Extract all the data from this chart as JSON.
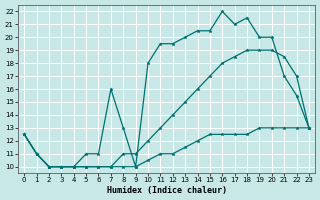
{
  "xlabel": "Humidex (Indice chaleur)",
  "bg_color": "#c8e8e8",
  "grid_color": "#c0c0c0",
  "line_color": "#007070",
  "xlim": [
    -0.5,
    23.5
  ],
  "ylim": [
    9.5,
    22.5
  ],
  "xticks": [
    0,
    1,
    2,
    3,
    4,
    5,
    6,
    7,
    8,
    9,
    10,
    11,
    12,
    13,
    14,
    15,
    16,
    17,
    18,
    19,
    20,
    21,
    22,
    23
  ],
  "yticks": [
    10,
    11,
    12,
    13,
    14,
    15,
    16,
    17,
    18,
    19,
    20,
    21,
    22
  ],
  "line1_x": [
    0,
    1,
    2,
    3,
    4,
    5,
    6,
    7,
    8,
    9,
    10,
    11,
    12,
    13,
    14,
    15,
    16,
    17,
    18,
    19,
    20,
    21,
    22,
    23
  ],
  "line1_y": [
    12.5,
    11,
    10,
    10,
    10,
    10,
    10,
    10,
    10,
    10,
    10.5,
    11,
    11,
    11.5,
    12,
    12.5,
    12.5,
    12.5,
    12.5,
    13,
    13,
    13,
    13,
    13
  ],
  "line2_x": [
    0,
    1,
    2,
    3,
    4,
    5,
    6,
    7,
    8,
    9,
    10,
    11,
    12,
    13,
    14,
    15,
    16,
    17,
    18,
    19,
    20,
    21,
    22,
    23
  ],
  "line2_y": [
    12.5,
    11,
    10,
    10,
    10,
    10,
    10,
    10,
    11,
    11,
    12,
    13,
    14,
    15,
    16,
    17,
    18,
    18.5,
    19,
    19,
    19,
    18.5,
    17,
    13
  ],
  "line3_x": [
    0,
    1,
    2,
    3,
    4,
    5,
    6,
    7,
    8,
    9,
    10,
    11,
    12,
    13,
    14,
    15,
    16,
    17,
    18,
    19,
    20,
    21,
    22,
    23
  ],
  "line3_y": [
    12.5,
    11,
    10,
    10,
    10,
    11,
    11,
    16,
    13,
    10,
    18,
    19.5,
    19.5,
    20,
    20.5,
    20.5,
    22,
    21,
    21.5,
    20,
    20,
    17,
    15.5,
    13
  ]
}
